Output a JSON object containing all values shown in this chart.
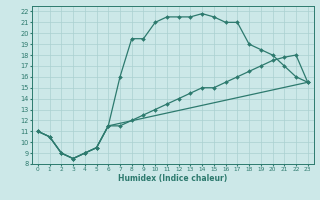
{
  "xlabel": "Humidex (Indice chaleur)",
  "bg_color": "#cce8e8",
  "grid_color": "#aad0d0",
  "line_color": "#2d7a6e",
  "xlim": [
    -0.5,
    23.5
  ],
  "ylim": [
    8,
    22.5
  ],
  "xticks": [
    0,
    1,
    2,
    3,
    4,
    5,
    6,
    7,
    8,
    9,
    10,
    11,
    12,
    13,
    14,
    15,
    16,
    17,
    18,
    19,
    20,
    21,
    22,
    23
  ],
  "yticks": [
    8,
    9,
    10,
    11,
    12,
    13,
    14,
    15,
    16,
    17,
    18,
    19,
    20,
    21,
    22
  ],
  "line1_x": [
    0,
    1,
    2,
    3,
    4,
    5,
    6,
    7,
    8,
    9,
    10,
    11,
    12,
    13,
    14,
    15,
    16,
    17,
    18,
    19,
    20,
    21,
    22,
    23
  ],
  "line1_y": [
    11.0,
    10.5,
    9.0,
    8.5,
    9.0,
    9.5,
    11.5,
    16.0,
    19.5,
    19.5,
    21.0,
    21.5,
    21.5,
    21.5,
    21.8,
    21.5,
    21.0,
    21.0,
    19.0,
    18.5,
    18.0,
    17.0,
    16.0,
    15.5
  ],
  "line2_x": [
    0,
    1,
    2,
    3,
    4,
    5,
    6,
    23
  ],
  "line2_y": [
    11.0,
    10.5,
    9.0,
    8.5,
    9.0,
    9.5,
    11.5,
    15.5
  ],
  "line3_x": [
    0,
    1,
    2,
    3,
    4,
    5,
    6,
    7,
    8,
    9,
    10,
    11,
    12,
    13,
    14,
    15,
    16,
    17,
    18,
    19,
    20,
    21,
    22,
    23
  ],
  "line3_y": [
    11.0,
    10.5,
    9.0,
    8.5,
    9.0,
    9.5,
    11.5,
    11.5,
    12.0,
    12.5,
    13.0,
    13.5,
    14.0,
    14.5,
    15.0,
    15.0,
    15.5,
    16.0,
    16.5,
    17.0,
    17.5,
    17.8,
    18.0,
    15.5
  ],
  "xticklabels": [
    "0",
    "1",
    "2",
    "3",
    "4",
    "5",
    "6",
    "7",
    "8",
    "9",
    "10",
    "11",
    "12",
    "13",
    "14",
    "15",
    "16",
    "17",
    "18",
    "19",
    "20",
    "21",
    "22",
    "23"
  ],
  "yticklabels": [
    "8",
    "9",
    "10",
    "11",
    "12",
    "13",
    "14",
    "15",
    "16",
    "17",
    "18",
    "19",
    "20",
    "21",
    "22"
  ]
}
